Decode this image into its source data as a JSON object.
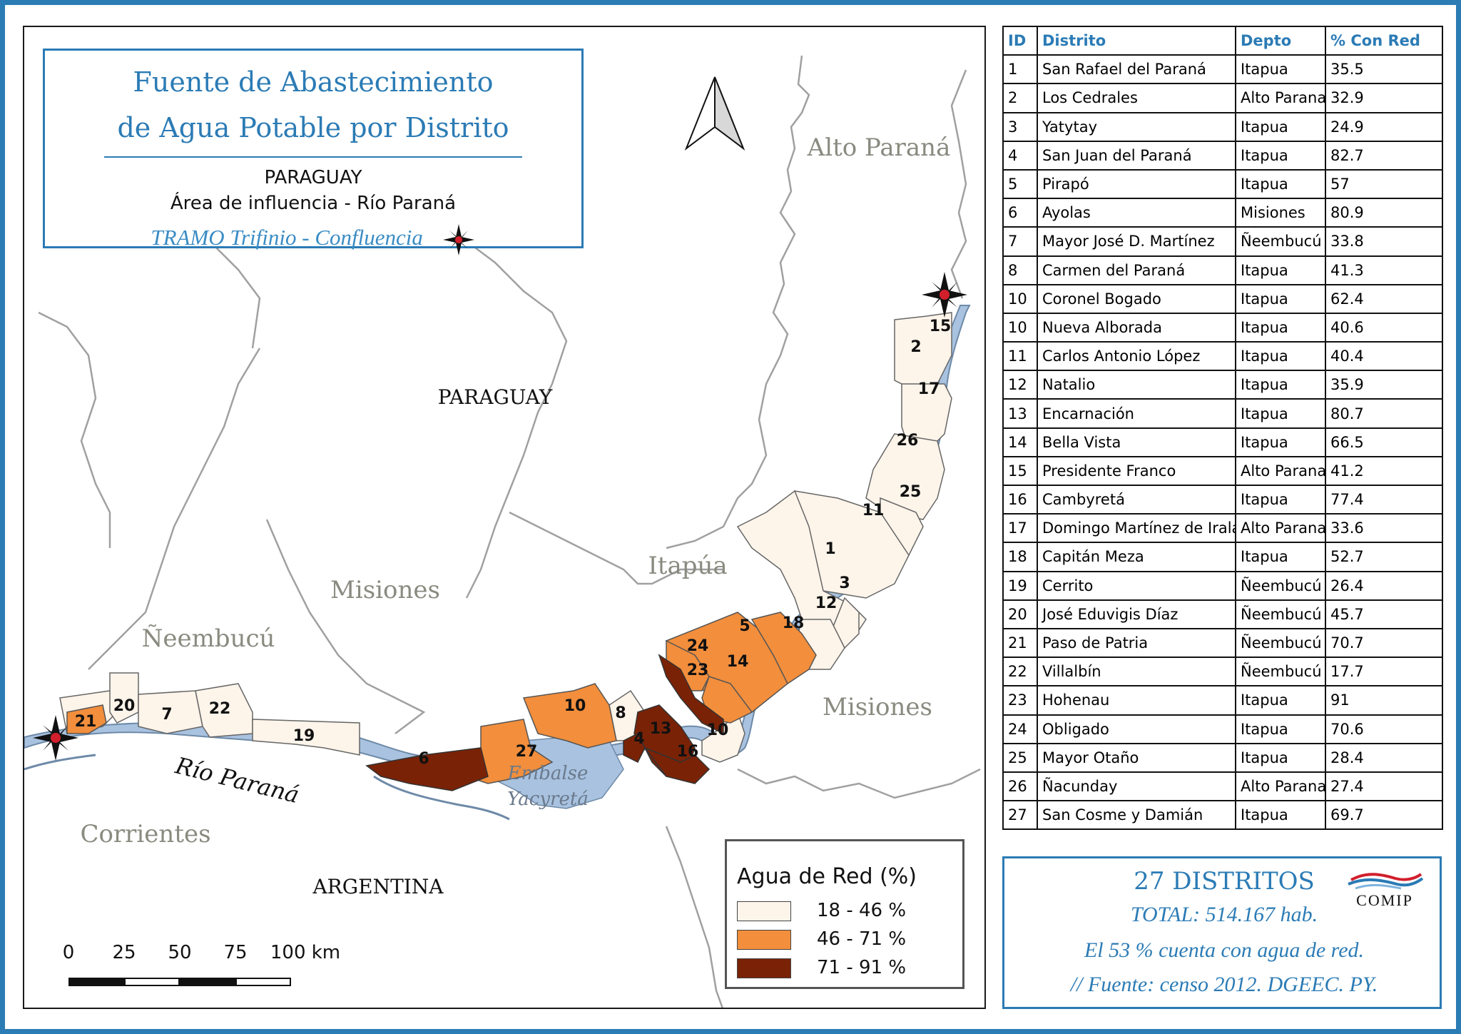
{
  "map": {
    "title_line1": "Fuente de Abastecimiento",
    "title_line2": "de Agua Potable por Distrito",
    "subtitle_country": "PARAGUAY",
    "subtitle_area": "Área de influencia - Río Paraná",
    "subtitle_tramo": "TRAMO Trifinio - Confluencia",
    "regions": {
      "paraguay": "PARAGUAY",
      "argentina": "ARGENTINA",
      "alto_parana": "Alto Paraná",
      "itapua": "Itapúa",
      "misiones_py": "Misiones",
      "misiones_ar": "Misiones",
      "neembucu": "Ñeembucú",
      "corrientes": "Corrientes",
      "rio_parana": "Río Paraná",
      "embalse_1": "Embalse",
      "embalse_2": "Yacyretá"
    },
    "district_labels": [
      "1",
      "2",
      "3",
      "4",
      "5",
      "6",
      "7",
      "8",
      "10",
      "10",
      "11",
      "12",
      "13",
      "14",
      "15",
      "16",
      "17",
      "18",
      "19",
      "20",
      "21",
      "22",
      "23",
      "24",
      "25",
      "26",
      "27"
    ],
    "colors": {
      "class_low": "#fdf4ea",
      "class_mid": "#f28e3c",
      "class_high": "#7a2206",
      "water": "#a8c2e0",
      "border": "#9a9a9a",
      "accent": "#2b7bb5"
    }
  },
  "legend": {
    "title": "Agua de Red (%)",
    "items": [
      {
        "label": "18 - 46 %",
        "color": "#fdf4ea"
      },
      {
        "label": "46 - 71 %",
        "color": "#f28e3c"
      },
      {
        "label": "71 - 91 %",
        "color": "#7a2206"
      }
    ]
  },
  "scale": {
    "labels": [
      "0",
      "25",
      "50",
      "75",
      "100 km"
    ]
  },
  "table": {
    "headers": [
      "ID",
      "Distrito",
      "Depto",
      "% Con Red"
    ],
    "rows": [
      [
        "1",
        "San Rafael del Paraná",
        "Itapua",
        "35.5"
      ],
      [
        "2",
        "Los Cedrales",
        "Alto Parana",
        "32.9"
      ],
      [
        "3",
        "Yatytay",
        "Itapua",
        "24.9"
      ],
      [
        "4",
        "San Juan del Paraná",
        "Itapua",
        "82.7"
      ],
      [
        "5",
        "Pirapó",
        "Itapua",
        "57"
      ],
      [
        "6",
        "Ayolas",
        "Misiones",
        "80.9"
      ],
      [
        "7",
        "Mayor José D. Martínez",
        "Ñeembucú",
        "33.8"
      ],
      [
        "8",
        "Carmen del Paraná",
        "Itapua",
        "41.3"
      ],
      [
        "10",
        "Coronel Bogado",
        "Itapua",
        "62.4"
      ],
      [
        "10",
        "Nueva Alborada",
        "Itapua",
        "40.6"
      ],
      [
        "11",
        "Carlos Antonio López",
        "Itapua",
        "40.4"
      ],
      [
        "12",
        "Natalio",
        "Itapua",
        "35.9"
      ],
      [
        "13",
        "Encarnación",
        "Itapua",
        "80.7"
      ],
      [
        "14",
        "Bella Vista",
        "Itapua",
        "66.5"
      ],
      [
        "15",
        "Presidente Franco",
        "Alto Parana",
        "41.2"
      ],
      [
        "16",
        "Cambyretá",
        "Itapua",
        "77.4"
      ],
      [
        "17",
        "Domingo Martínez de Irala",
        "Alto Parana",
        "33.6"
      ],
      [
        "18",
        "Capitán Meza",
        "Itapua",
        "52.7"
      ],
      [
        "19",
        "Cerrito",
        "Ñeembucú",
        "26.4"
      ],
      [
        "20",
        "José Eduvigis Díaz",
        "Ñeembucú",
        "45.7"
      ],
      [
        "21",
        "Paso de Patria",
        "Ñeembucú",
        "70.7"
      ],
      [
        "22",
        "Villalbín",
        "Ñeembucú",
        "17.7"
      ],
      [
        "23",
        "Hohenau",
        "Itapua",
        "91"
      ],
      [
        "24",
        "Obligado",
        "Itapua",
        "70.6"
      ],
      [
        "25",
        "Mayor Otaño",
        "Itapua",
        "28.4"
      ],
      [
        "26",
        "Ñacunday",
        "Alto Parana",
        "27.4"
      ],
      [
        "27",
        "San Cosme y Damián",
        "Itapua",
        "69.7"
      ]
    ]
  },
  "summary": {
    "heading": "27 DISTRITOS",
    "total": "TOTAL: 514.167 hab.",
    "coverage": "El 53 % cuenta con agua de red.",
    "source": "// Fuente: censo 2012. DGEEC. PY.",
    "logo_text": "COMIP"
  }
}
